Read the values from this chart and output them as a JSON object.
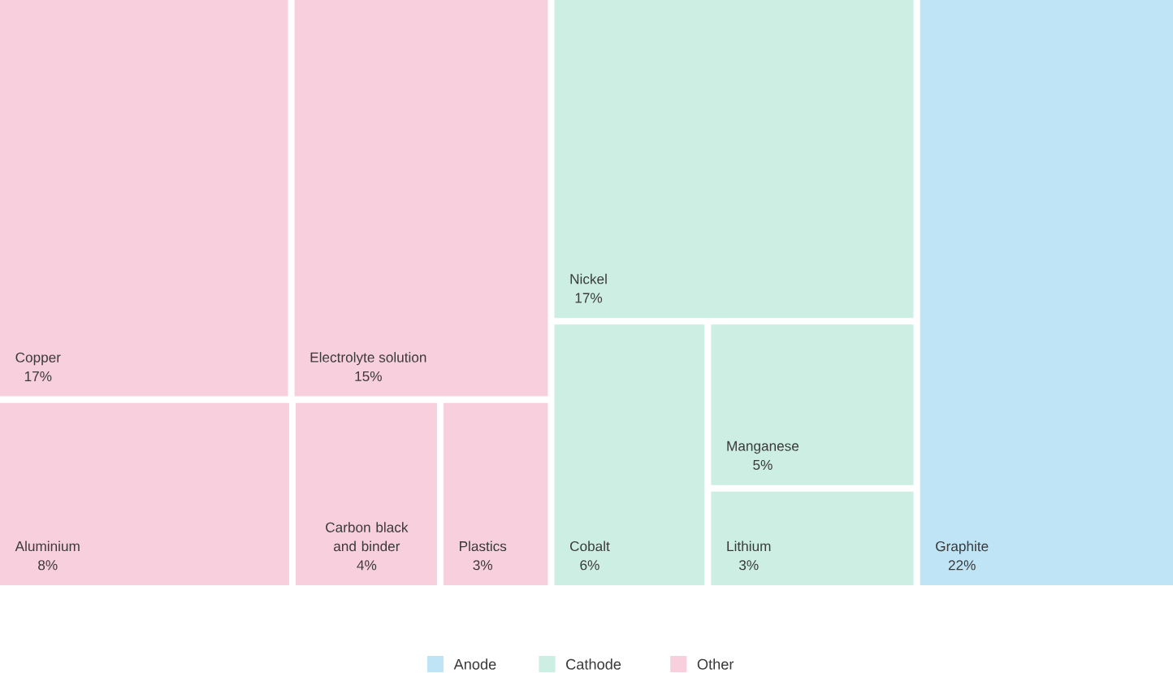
{
  "chart_data": {
    "type": "other",
    "categories": [
      "Copper",
      "Electrolyte solution",
      "Aluminium",
      "Carbon black and binder",
      "Plastics",
      "Nickel",
      "Cobalt",
      "Manganese",
      "Lithium",
      "Graphite"
    ],
    "series": [
      {
        "name": "Anode",
        "color": "#bfe4f6",
        "values": [
          null,
          null,
          null,
          null,
          null,
          null,
          null,
          null,
          null,
          22
        ],
        "value_labels": [
          null,
          null,
          null,
          null,
          null,
          null,
          null,
          null,
          null,
          "22%"
        ]
      },
      {
        "name": "Cathode",
        "color": "#cdeee3",
        "values": [
          null,
          null,
          null,
          null,
          null,
          17,
          6,
          5,
          3,
          null
        ],
        "value_labels": [
          null,
          null,
          null,
          null,
          null,
          "17%",
          "6%",
          "5%",
          "3%",
          null
        ]
      },
      {
        "name": "Other",
        "color": "#f8cfdc",
        "values": [
          17,
          15,
          8,
          4,
          3,
          null,
          null,
          null,
          null,
          null
        ],
        "value_labels": [
          "17%",
          "15%",
          "8%",
          "4%",
          "3%",
          null,
          null,
          null,
          null,
          null
        ]
      }
    ],
    "legend": "bottom"
  }
}
